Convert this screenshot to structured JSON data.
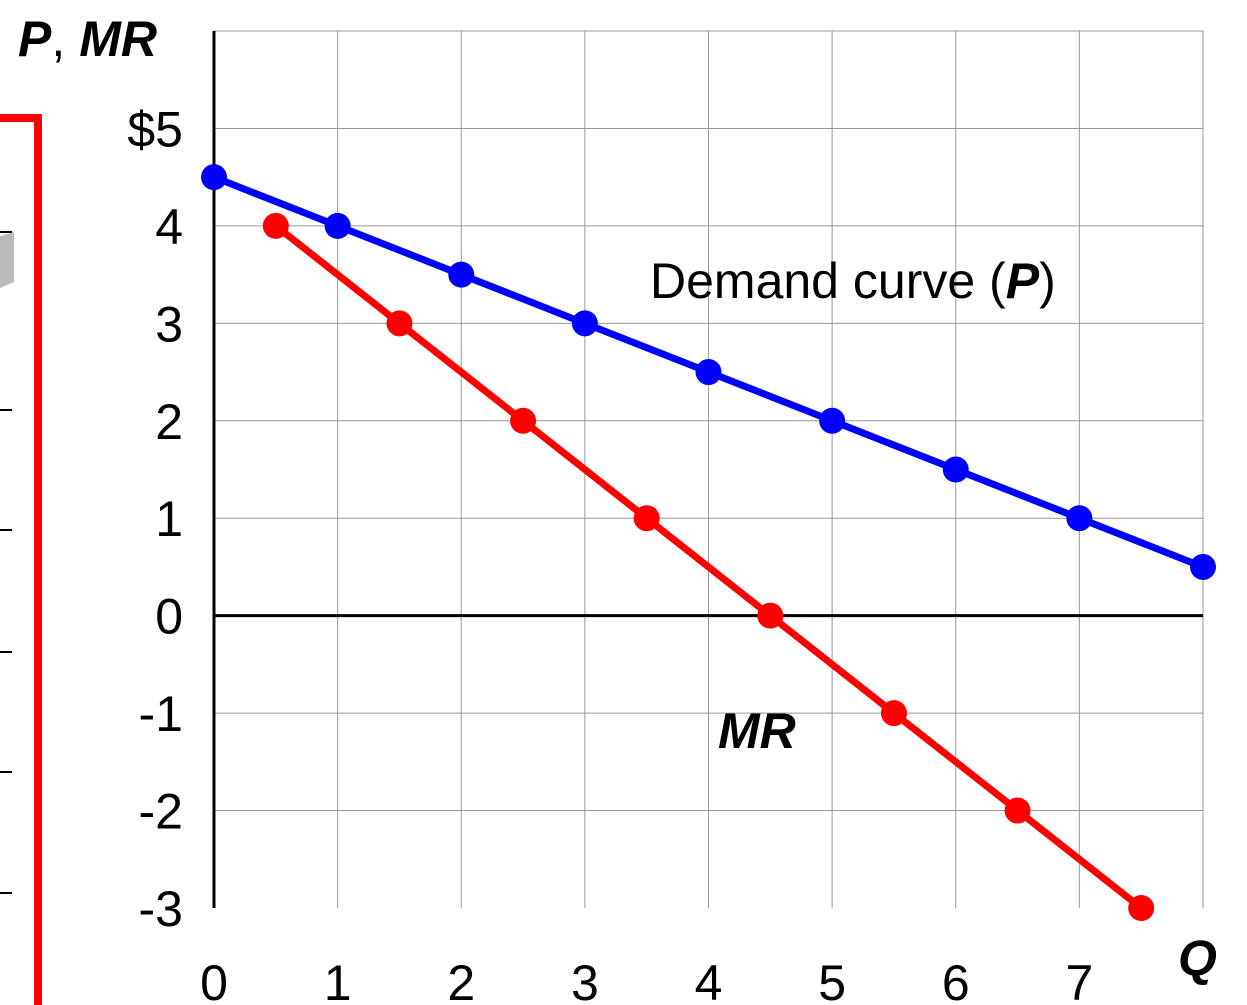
{
  "colors": {
    "demand": "#0000ff",
    "mr": "#ff0000",
    "grid": "#999999",
    "axis": "#000000",
    "left_frame": "#ff0000"
  },
  "chart_data": {
    "type": "line",
    "x_ticks": [
      "0",
      "1",
      "2",
      "3",
      "4",
      "5",
      "6",
      "7"
    ],
    "y_ticks": [
      "-3",
      "-2",
      "-1",
      "0",
      "1",
      "2",
      "3",
      "4",
      "$5"
    ],
    "x_title": "Q",
    "y_title": {
      "part1": "P",
      "sep": ",",
      "part2": "MR"
    },
    "xlim": [
      0,
      8
    ],
    "ylim": [
      -3,
      6
    ],
    "grid": true,
    "series": [
      {
        "key": "demand",
        "label_prefix": "Demand curve (",
        "label_var": "P",
        "label_suffix": ")",
        "x": [
          0,
          1,
          2,
          3,
          4,
          5,
          6,
          7,
          8
        ],
        "y": [
          4.5,
          4.0,
          3.5,
          3.0,
          2.5,
          2.0,
          1.5,
          1.0,
          0.5
        ]
      },
      {
        "key": "mr",
        "label": "MR",
        "x": [
          0.5,
          1.5,
          2.5,
          3.5,
          4.5,
          5.5,
          6.5,
          7.5
        ],
        "y": [
          4,
          3,
          2,
          1,
          0,
          -1,
          -2,
          -3
        ]
      }
    ]
  }
}
